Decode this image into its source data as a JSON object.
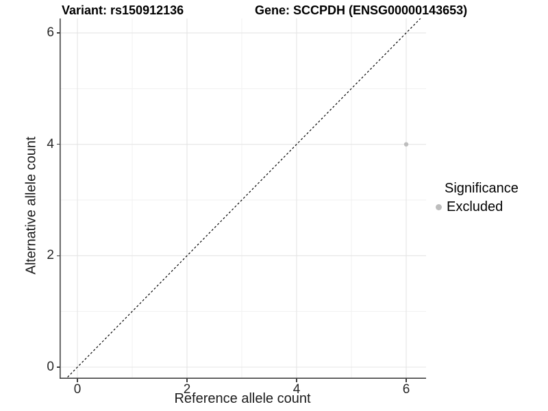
{
  "chart_data": {
    "type": "scatter",
    "title_left": "Variant: rs150912136",
    "title_right": "Gene: SCCPDH (ENSG00000143653)",
    "xlabel": "Reference allele count",
    "ylabel": "Alternative allele count",
    "x_ticks": [
      0,
      2,
      4,
      6
    ],
    "y_ticks": [
      0,
      2,
      4,
      6
    ],
    "x_minor_ticks": [
      1,
      3,
      5
    ],
    "y_minor_ticks": [
      1,
      3,
      5
    ],
    "xlim": [
      -0.33,
      6.36
    ],
    "ylim": [
      -0.21,
      6.27
    ],
    "grid": "on",
    "identity_line": {
      "type": "identity",
      "style": "dashed",
      "color": "#000000"
    },
    "series": [
      {
        "name": "Excluded",
        "color": "#bdbdbd",
        "points": [
          {
            "x": 6,
            "y": 4
          }
        ]
      }
    ],
    "legend": {
      "title": "Significance",
      "position": "right",
      "entries": [
        {
          "label": "Excluded",
          "color": "#bdbdbd"
        }
      ]
    },
    "colors": {
      "grid_major": "#e4e4e4",
      "grid_minor": "#f1f1f1",
      "axis_line": "#424242",
      "tick_mark": "#3c3c3c",
      "tick_text": "#262626",
      "point": "#bdbdbd"
    }
  }
}
